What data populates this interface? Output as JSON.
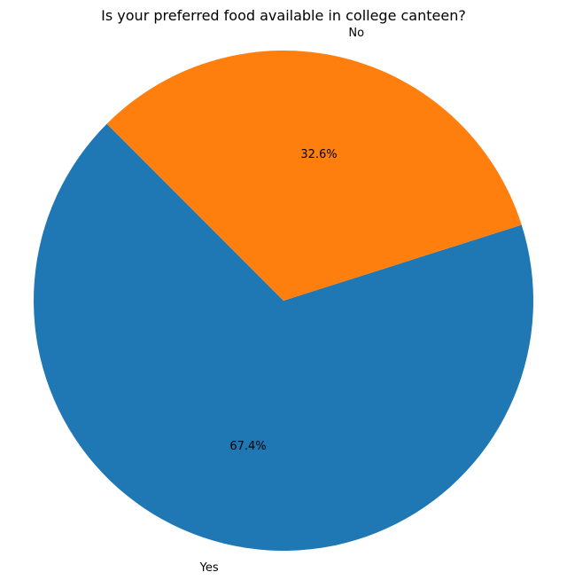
{
  "chart_data": {
    "type": "pie",
    "title": "Is your preferred food available in college canteen?",
    "categories": [
      "Yes",
      "No"
    ],
    "values": [
      67.4,
      32.6
    ],
    "percent_labels": [
      "67.4%",
      "32.6%"
    ],
    "colors": [
      "#1f77b4",
      "#ff7f0e"
    ],
    "legend": false
  }
}
